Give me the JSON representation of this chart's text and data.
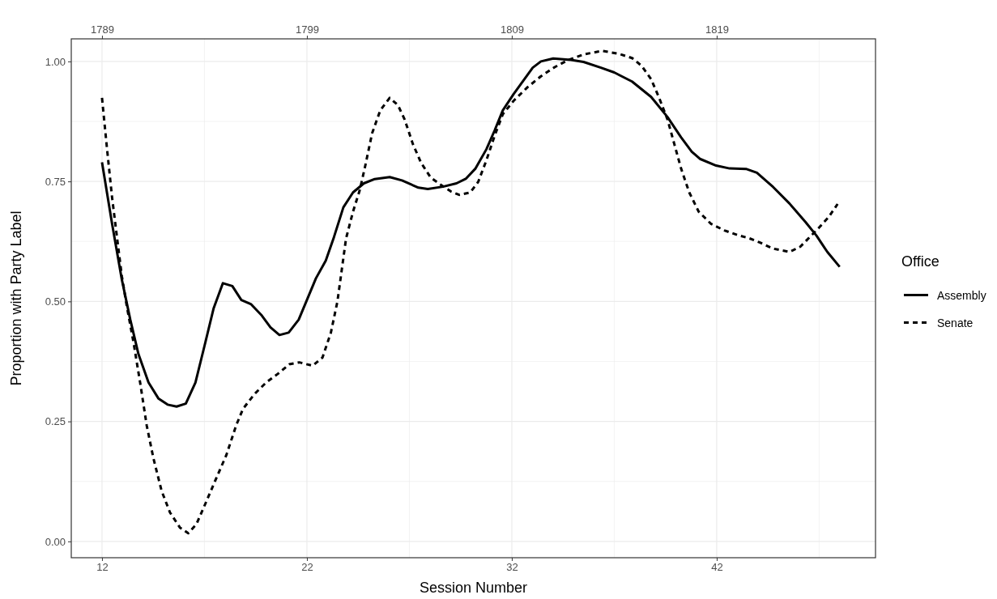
{
  "chart_data": {
    "type": "line",
    "xlabel": "Session Number",
    "ylabel": "Proportion with Party Label",
    "legend_title": "Office",
    "xlim": [
      10.5,
      49.75
    ],
    "xticks": [
      12,
      22,
      32,
      42
    ],
    "x2lim": [
      1787.5,
      1826.75
    ],
    "x2ticks": [
      1789,
      1799,
      1809,
      1819
    ],
    "ylim": [
      -0.034,
      1.047
    ],
    "yticks": [
      {
        "value": 0,
        "label": "0.00"
      },
      {
        "value": 0.25,
        "label": "0.25"
      },
      {
        "value": 0.5,
        "label": "0.50"
      },
      {
        "value": 0.75,
        "label": "0.75"
      },
      {
        "value": 1,
        "label": "1.00"
      }
    ],
    "grid": true,
    "legend": "right",
    "marker": "none",
    "series": [
      {
        "name": "Assembly",
        "color": "#000000",
        "line_style": "solid",
        "x": [
          12,
          12.49,
          12.97,
          13.38,
          13.78,
          14.27,
          14.75,
          15.2,
          15.64,
          16.09,
          16.56,
          17,
          17.45,
          17.9,
          18.36,
          18.8,
          19.28,
          19.77,
          20.22,
          20.66,
          21.11,
          21.6,
          22,
          22.44,
          22.92,
          23.32,
          23.78,
          24.25,
          24.78,
          25.31,
          26.04,
          26.64,
          27.44,
          27.9,
          28.64,
          29.3,
          29.77,
          30.23,
          30.76,
          31.16,
          31.56,
          32.09,
          33.02,
          33.42,
          34.02,
          34.89,
          35.5,
          36.35,
          37,
          37.87,
          38.8,
          39.6,
          40.26,
          40.78,
          41.18,
          41.97,
          42.63,
          43.43,
          43.96,
          44.76,
          45.55,
          46.34,
          46.87,
          47.4,
          48
        ],
        "values": [
          0.79,
          0.662,
          0.545,
          0.462,
          0.39,
          0.331,
          0.298,
          0.285,
          0.281,
          0.287,
          0.331,
          0.407,
          0.486,
          0.538,
          0.532,
          0.503,
          0.494,
          0.472,
          0.446,
          0.43,
          0.435,
          0.462,
          0.503,
          0.548,
          0.585,
          0.634,
          0.696,
          0.727,
          0.746,
          0.755,
          0.759,
          0.752,
          0.737,
          0.734,
          0.739,
          0.746,
          0.756,
          0.777,
          0.817,
          0.856,
          0.898,
          0.932,
          0.987,
          1,
          1.006,
          1.003,
          0.999,
          0.987,
          0.977,
          0.958,
          0.926,
          0.884,
          0.842,
          0.812,
          0.797,
          0.783,
          0.777,
          0.776,
          0.768,
          0.738,
          0.704,
          0.665,
          0.637,
          0.603,
          0.572
        ]
      },
      {
        "name": "Senate",
        "color": "#000000",
        "line_style": "dashed",
        "x": [
          12,
          12.24,
          12.49,
          12.73,
          12.97,
          13.21,
          13.54,
          13.86,
          14.18,
          14.51,
          14.91,
          15.32,
          15.8,
          16.21,
          16.61,
          17.1,
          17.58,
          18.07,
          18.55,
          18.88,
          19.44,
          20.01,
          20.58,
          21.14,
          21.63,
          22.28,
          22.76,
          23.17,
          23.49,
          23.91,
          24.25,
          24.58,
          24.85,
          25.18,
          25.58,
          26.04,
          26.44,
          26.77,
          27.17,
          27.57,
          28.04,
          28.5,
          29.03,
          29.43,
          29.97,
          30.36,
          30.76,
          31.16,
          31.56,
          32.09,
          32.76,
          33.42,
          34.09,
          34.75,
          35.55,
          36.42,
          37.21,
          37.87,
          38.33,
          38.8,
          39.19,
          39.6,
          39.93,
          40.26,
          40.66,
          41.12,
          41.71,
          42.37,
          43.03,
          43.56,
          44.09,
          44.75,
          45.55,
          46.08,
          46.61,
          47,
          47.47,
          47.9
        ],
        "values": [
          0.924,
          0.82,
          0.717,
          0.634,
          0.552,
          0.49,
          0.414,
          0.331,
          0.242,
          0.173,
          0.105,
          0.06,
          0.029,
          0.017,
          0.036,
          0.084,
          0.132,
          0.18,
          0.242,
          0.276,
          0.307,
          0.331,
          0.349,
          0.369,
          0.373,
          0.366,
          0.383,
          0.435,
          0.5,
          0.631,
          0.687,
          0.732,
          0.783,
          0.85,
          0.898,
          0.924,
          0.909,
          0.879,
          0.828,
          0.789,
          0.758,
          0.744,
          0.729,
          0.722,
          0.727,
          0.749,
          0.794,
          0.845,
          0.89,
          0.918,
          0.946,
          0.969,
          0.988,
          1.003,
          1.015,
          1.022,
          1.016,
          1.007,
          0.991,
          0.963,
          0.924,
          0.879,
          0.828,
          0.777,
          0.727,
          0.687,
          0.662,
          0.648,
          0.638,
          0.632,
          0.623,
          0.61,
          0.603,
          0.614,
          0.637,
          0.654,
          0.676,
          0.703
        ]
      }
    ]
  }
}
